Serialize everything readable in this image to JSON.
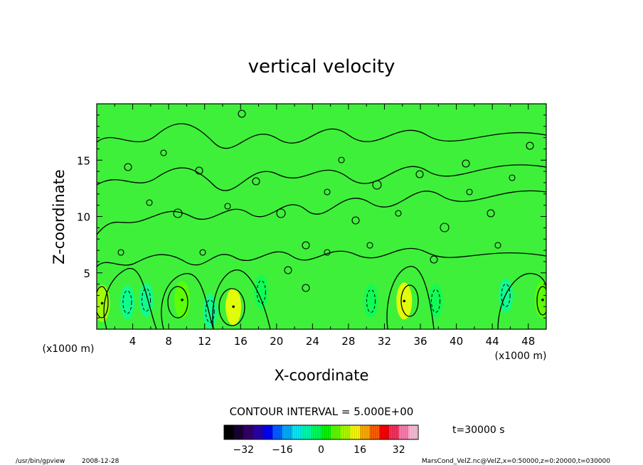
{
  "chart_data": {
    "type": "heatmap",
    "title": "vertical velocity",
    "xlabel": "X-coordinate",
    "ylabel": "Z-coordinate",
    "x_unit": "(x1000 m)",
    "z_unit": "(x1000 m)",
    "xlim": [
      0,
      50
    ],
    "ylim": [
      0,
      20
    ],
    "x_ticks": [
      4,
      8,
      12,
      16,
      20,
      24,
      28,
      32,
      36,
      40,
      44,
      48
    ],
    "y_ticks": [
      5,
      10,
      15
    ],
    "contour_interval_text": "CONTOUR INTERVAL = 5.000E+00",
    "time_text": "t=30000 s",
    "colorbar": {
      "range": [
        -40,
        40
      ],
      "ticks": [
        -32,
        -16,
        0,
        16,
        32
      ],
      "colors": [
        "#000000",
        "#1a0033",
        "#330066",
        "#2a00b0",
        "#0000ff",
        "#0060ff",
        "#00b0ff",
        "#00f0ff",
        "#00ffb0",
        "#00ff60",
        "#00ff00",
        "#60ff00",
        "#b0ff00",
        "#ffff00",
        "#ffb000",
        "#ff6000",
        "#ff0000",
        "#ff3060",
        "#ff80b0",
        "#ffc0e0"
      ]
    },
    "updraft_cores": [
      {
        "x": 0.6,
        "z": 2.3,
        "value": 8
      },
      {
        "x": 9.5,
        "z": 2.6,
        "value": 7
      },
      {
        "x": 15.2,
        "z": 2.0,
        "value": 12
      },
      {
        "x": 34.2,
        "z": 2.5,
        "value": 12
      },
      {
        "x": 49.6,
        "z": 2.6,
        "value": 7
      }
    ],
    "downdraft_cores": [
      {
        "x": 3.4,
        "z": 2.4,
        "value": -7
      },
      {
        "x": 5.5,
        "z": 2.6,
        "value": -6
      },
      {
        "x": 12.6,
        "z": 1.6,
        "value": -5
      },
      {
        "x": 18.3,
        "z": 3.3,
        "value": -4
      },
      {
        "x": 30.5,
        "z": 2.5,
        "value": -4
      },
      {
        "x": 37.7,
        "z": 2.5,
        "value": -4
      },
      {
        "x": 45.5,
        "z": 3.0,
        "value": -6
      }
    ]
  },
  "footer": {
    "program": "/usr/bin/gpview",
    "date": "2008-12-28",
    "source": "MarsCond_VelZ.nc@VelZ,x=0:50000,z=0:20000,t=030000"
  }
}
